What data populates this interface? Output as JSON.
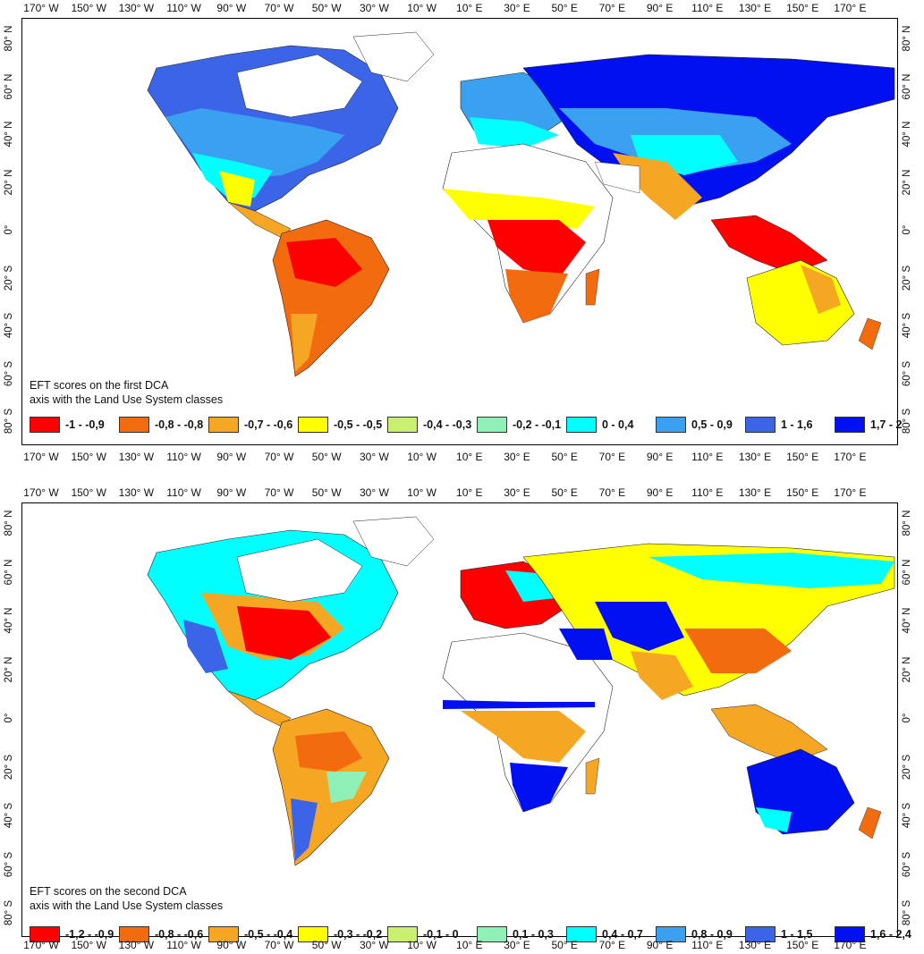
{
  "lon_labels": [
    "170° W",
    "150° W",
    "130° W",
    "110° W",
    "90° W",
    "70° W",
    "50° W",
    "30° W",
    "10° W",
    "10° E",
    "30° E",
    "50° E",
    "70° E",
    "90° E",
    "110° E",
    "130° E",
    "150° E",
    "170° E"
  ],
  "lat_labels": [
    "80° N",
    "60° N",
    "40° N",
    "20° N",
    "0°",
    "20° S",
    "40° S",
    "60° S",
    "80° S"
  ],
  "maps": [
    {
      "caption_line1": "EFT scores on the first DCA",
      "caption_line2": "axis with the Land Use System classes",
      "legend": [
        {
          "label": "-1 - -0,9",
          "color": "#ff0000"
        },
        {
          "label": "-0,8 - -0,8",
          "color": "#f26b0f"
        },
        {
          "label": "-0,7 - -0,6",
          "color": "#f5a623"
        },
        {
          "label": "-0,5 - -0,5",
          "color": "#ffff00"
        },
        {
          "label": "-0,4 - -0,3",
          "color": "#c8f06e"
        },
        {
          "label": "-0,2 - -0,1",
          "color": "#8ef0b4"
        },
        {
          "label": "0 - 0,4",
          "color": "#00ffff"
        },
        {
          "label": "0,5 - 0,9",
          "color": "#3aa0f0"
        },
        {
          "label": "1 - 1,6",
          "color": "#3c64e6"
        },
        {
          "label": "1,7 - 2",
          "color": "#0010f0"
        }
      ]
    },
    {
      "caption_line1": "EFT scores on the second DCA",
      "caption_line2": "axis with the Land Use System classes",
      "legend": [
        {
          "label": "-1,2 - -0,9",
          "color": "#ff0000"
        },
        {
          "label": "-0,8 - -0,6",
          "color": "#f26b0f"
        },
        {
          "label": "-0,5 - -0,4",
          "color": "#f5a623"
        },
        {
          "label": "-0,3 - -0,2",
          "color": "#ffff00"
        },
        {
          "label": "-0,1 - 0",
          "color": "#c8f06e"
        },
        {
          "label": "0,1 - 0,3",
          "color": "#8ef0b4"
        },
        {
          "label": "0,4 - 0,7",
          "color": "#00ffff"
        },
        {
          "label": "0,8 - 0,9",
          "color": "#3aa0f0"
        },
        {
          "label": "1 - 1,5",
          "color": "#3c64e6"
        },
        {
          "label": "1,6 - 2,4",
          "color": "#0010f0"
        }
      ]
    }
  ]
}
